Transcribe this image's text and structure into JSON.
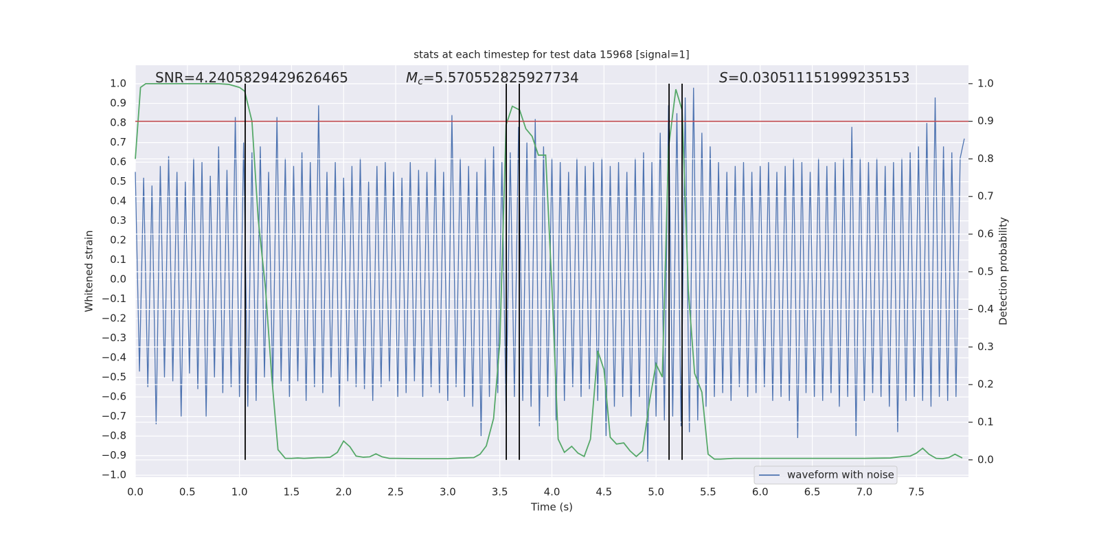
{
  "chart_data": {
    "type": "line",
    "title": "stats at each timestep for test data 15968 [signal=1]",
    "xlabel": "Time (s)",
    "ylabel": "Whitened strain",
    "y2label": "Detection probability",
    "annotations": [
      {
        "text": "SNR=4.2405829429626465"
      },
      {
        "symbol": "M",
        "subscript": "c",
        "text": "=5.570552825927734"
      },
      {
        "symbol": "S",
        "text": "=0.030511151999235153"
      }
    ],
    "xlim": [
      0,
      8.0
    ],
    "ylim": [
      -1.01,
      1.095
    ],
    "y2lim": [
      -0.046,
      1.049
    ],
    "grid": true,
    "legend": "lower right",
    "background": "#eaeaf2",
    "xticks": [
      {
        "value": 0,
        "label": "0.0"
      },
      {
        "value": 0.5,
        "label": "0.5"
      },
      {
        "value": 1,
        "label": "1.0"
      },
      {
        "value": 1.5,
        "label": "1.5"
      },
      {
        "value": 2,
        "label": "2.0"
      },
      {
        "value": 2.5,
        "label": "2.5"
      },
      {
        "value": 3,
        "label": "3.0"
      },
      {
        "value": 3.5,
        "label": "3.5"
      },
      {
        "value": 4,
        "label": "4.0"
      },
      {
        "value": 4.5,
        "label": "4.5"
      },
      {
        "value": 5,
        "label": "5.0"
      },
      {
        "value": 5.5,
        "label": "5.5"
      },
      {
        "value": 6,
        "label": "6.0"
      },
      {
        "value": 6.5,
        "label": "6.5"
      },
      {
        "value": 7,
        "label": "7.0"
      },
      {
        "value": 7.5,
        "label": "7.5"
      }
    ],
    "yticks": [
      {
        "value": -1,
        "label": "−1.0"
      },
      {
        "value": -0.9,
        "label": "−0.9"
      },
      {
        "value": -0.8,
        "label": "−0.8"
      },
      {
        "value": -0.7,
        "label": "−0.7"
      },
      {
        "value": -0.6,
        "label": "−0.6"
      },
      {
        "value": -0.5,
        "label": "−0.5"
      },
      {
        "value": -0.4,
        "label": "−0.4"
      },
      {
        "value": -0.3,
        "label": "−0.3"
      },
      {
        "value": -0.2,
        "label": "−0.2"
      },
      {
        "value": -0.1,
        "label": "−0.1"
      },
      {
        "value": 0,
        "label": "0.0"
      },
      {
        "value": 0.1,
        "label": "0.1"
      },
      {
        "value": 0.2,
        "label": "0.2"
      },
      {
        "value": 0.3,
        "label": "0.3"
      },
      {
        "value": 0.4,
        "label": "0.4"
      },
      {
        "value": 0.5,
        "label": "0.5"
      },
      {
        "value": 0.6,
        "label": "0.6"
      },
      {
        "value": 0.7,
        "label": "0.7"
      },
      {
        "value": 0.8,
        "label": "0.8"
      },
      {
        "value": 0.9,
        "label": "0.9"
      },
      {
        "value": 1,
        "label": "1.0"
      }
    ],
    "y2ticks": [
      {
        "value": 0,
        "label": "0.0"
      },
      {
        "value": 0.1,
        "label": "0.1"
      },
      {
        "value": 0.2,
        "label": "0.2"
      },
      {
        "value": 0.3,
        "label": "0.3"
      },
      {
        "value": 0.4,
        "label": "0.4"
      },
      {
        "value": 0.5,
        "label": "0.5"
      },
      {
        "value": 0.6,
        "label": "0.6"
      },
      {
        "value": 0.7,
        "label": "0.7"
      },
      {
        "value": 0.8,
        "label": "0.8"
      },
      {
        "value": 0.9,
        "label": "0.9"
      },
      {
        "value": 1,
        "label": "1.0"
      }
    ],
    "series": [
      {
        "name": "waveform with noise",
        "color": "#4c72b0",
        "x": [
          0,
          0.04,
          0.08,
          0.12,
          0.16,
          0.2,
          0.24,
          0.28,
          0.32,
          0.36,
          0.4,
          0.44,
          0.48,
          0.52,
          0.56,
          0.6,
          0.64,
          0.68,
          0.72,
          0.76,
          0.8,
          0.84,
          0.88,
          0.92,
          0.96,
          1,
          1.04,
          1.08,
          1.12,
          1.16,
          1.2,
          1.24,
          1.28,
          1.32,
          1.36,
          1.4,
          1.44,
          1.48,
          1.52,
          1.56,
          1.6,
          1.64,
          1.68,
          1.72,
          1.76,
          1.8,
          1.84,
          1.88,
          1.92,
          1.96,
          2,
          2.04,
          2.08,
          2.12,
          2.16,
          2.2,
          2.24,
          2.28,
          2.32,
          2.36,
          2.4,
          2.44,
          2.48,
          2.52,
          2.56,
          2.6,
          2.64,
          2.68,
          2.72,
          2.76,
          2.8,
          2.84,
          2.88,
          2.92,
          2.96,
          3,
          3.04,
          3.08,
          3.12,
          3.16,
          3.2,
          3.24,
          3.28,
          3.32,
          3.36,
          3.4,
          3.44,
          3.48,
          3.52,
          3.56,
          3.6,
          3.64,
          3.68,
          3.72,
          3.76,
          3.8,
          3.84,
          3.88,
          3.92,
          3.96,
          4,
          4.04,
          4.08,
          4.12,
          4.16,
          4.2,
          4.24,
          4.28,
          4.32,
          4.36,
          4.4,
          4.44,
          4.48,
          4.52,
          4.56,
          4.6,
          4.64,
          4.68,
          4.72,
          4.76,
          4.8,
          4.84,
          4.88,
          4.92,
          4.96,
          5,
          5.04,
          5.08,
          5.12,
          5.16,
          5.2,
          5.24,
          5.28,
          5.32,
          5.36,
          5.4,
          5.44,
          5.48,
          5.52,
          5.56,
          5.6,
          5.64,
          5.68,
          5.72,
          5.76,
          5.8,
          5.84,
          5.88,
          5.92,
          5.96,
          6,
          6.04,
          6.08,
          6.12,
          6.16,
          6.2,
          6.24,
          6.28,
          6.32,
          6.36,
          6.4,
          6.44,
          6.48,
          6.52,
          6.56,
          6.6,
          6.64,
          6.68,
          6.72,
          6.76,
          6.8,
          6.84,
          6.88,
          6.92,
          6.96,
          7,
          7.04,
          7.08,
          7.12,
          7.16,
          7.2,
          7.24,
          7.28,
          7.32,
          7.36,
          7.4,
          7.44,
          7.48,
          7.52,
          7.56,
          7.6,
          7.64,
          7.68,
          7.72,
          7.76,
          7.8,
          7.84,
          7.88,
          7.92,
          7.96
        ],
        "values": [
          0.55,
          -0.47,
          0.52,
          -0.55,
          0.48,
          -0.74,
          0.58,
          -0.5,
          0.63,
          -0.52,
          0.55,
          -0.7,
          0.5,
          -0.48,
          0.62,
          -0.56,
          0.6,
          -0.7,
          0.53,
          -0.5,
          0.68,
          -0.58,
          0.56,
          -0.55,
          0.83,
          -0.6,
          0.7,
          -0.65,
          0.65,
          -0.62,
          0.68,
          -0.5,
          0.55,
          -0.55,
          0.83,
          -0.52,
          0.62,
          -0.6,
          0.58,
          -0.52,
          0.65,
          -0.62,
          0.6,
          -0.55,
          0.89,
          -0.58,
          0.55,
          -0.5,
          0.6,
          -0.65,
          0.52,
          -0.52,
          0.58,
          -0.55,
          0.62,
          -0.56,
          0.5,
          -0.62,
          0.58,
          -0.55,
          0.6,
          -0.52,
          0.55,
          -0.6,
          0.52,
          -0.58,
          0.6,
          -0.52,
          0.56,
          -0.6,
          0.55,
          -0.55,
          0.62,
          -0.58,
          0.55,
          -0.62,
          0.84,
          -0.55,
          0.62,
          -0.6,
          0.58,
          -0.65,
          0.55,
          -0.8,
          0.62,
          -0.6,
          0.68,
          -0.58,
          0.6,
          -0.68,
          0.65,
          -0.6,
          0.78,
          -0.62,
          0.7,
          -0.65,
          0.82,
          -0.75,
          0.68,
          -0.6,
          0.62,
          -0.72,
          0.6,
          -0.62,
          0.55,
          -0.55,
          0.62,
          -0.6,
          0.58,
          -0.56,
          0.6,
          -0.62,
          0.62,
          -0.8,
          0.58,
          -0.65,
          0.6,
          -0.6,
          0.55,
          -0.7,
          0.62,
          -0.6,
          0.65,
          -0.93,
          0.6,
          -0.7,
          0.75,
          -0.72,
          0.89,
          -0.7,
          0.85,
          -0.75,
          0.93,
          -0.78,
          0.98,
          -0.72,
          0.75,
          -0.65,
          0.68,
          -0.6,
          0.6,
          -0.58,
          0.55,
          -0.62,
          0.58,
          -0.55,
          0.6,
          -0.6,
          0.55,
          -0.58,
          0.58,
          -0.55,
          0.6,
          -0.62,
          0.55,
          -0.6,
          0.58,
          -0.62,
          0.62,
          -0.81,
          0.6,
          -0.58,
          0.55,
          -0.6,
          0.62,
          -0.62,
          0.58,
          -0.58,
          0.6,
          -0.65,
          0.62,
          -0.6,
          0.78,
          -0.8,
          0.62,
          -0.62,
          0.6,
          -0.58,
          0.62,
          -0.6,
          0.58,
          -0.65,
          0.6,
          -0.78,
          0.62,
          -0.62,
          0.65,
          -0.6,
          0.68,
          -0.62,
          0.8,
          -0.65,
          0.93,
          -0.6,
          0.68,
          -0.62,
          0.65,
          -0.6,
          0.62,
          0.72
        ]
      },
      {
        "color": "#55a868",
        "axis": "y2",
        "x": [
          0,
          0.05,
          0.1,
          0.2,
          0.4,
          0.6,
          0.8,
          0.9,
          1,
          1.05,
          1.12,
          1.18,
          1.25,
          1.31,
          1.37,
          1.44,
          1.5,
          1.56,
          1.62,
          1.69,
          1.75,
          1.81,
          1.87,
          1.94,
          2,
          2.06,
          2.12,
          2.19,
          2.25,
          2.31,
          2.37,
          2.44,
          2.5,
          2.75,
          3,
          3.12,
          3.25,
          3.31,
          3.37,
          3.44,
          3.5,
          3.56,
          3.62,
          3.69,
          3.75,
          3.81,
          3.87,
          3.94,
          4,
          4.06,
          4.12,
          4.19,
          4.25,
          4.31,
          4.37,
          4.44,
          4.5,
          4.56,
          4.62,
          4.69,
          4.75,
          4.81,
          4.87,
          4.94,
          5,
          5.06,
          5.12,
          5.19,
          5.25,
          5.31,
          5.37,
          5.44,
          5.5,
          5.56,
          5.62,
          5.75,
          6,
          6.5,
          7,
          7.25,
          7.37,
          7.44,
          7.5,
          7.56,
          7.62,
          7.69,
          7.75,
          7.81,
          7.87,
          7.94
        ],
        "values": [
          0.8,
          0.99,
          1,
          1,
          1,
          1,
          1,
          0.998,
          0.99,
          0.98,
          0.9,
          0.64,
          0.456,
          0.22,
          0.027,
          0.004,
          0.004,
          0.005,
          0.004,
          0.005,
          0.006,
          0.006,
          0.007,
          0.02,
          0.05,
          0.035,
          0.01,
          0.007,
          0.008,
          0.016,
          0.008,
          0.004,
          0.004,
          0.003,
          0.003,
          0.005,
          0.006,
          0.015,
          0.037,
          0.11,
          0.31,
          0.89,
          0.94,
          0.93,
          0.88,
          0.86,
          0.81,
          0.81,
          0.46,
          0.055,
          0.02,
          0.036,
          0.018,
          0.009,
          0.055,
          0.29,
          0.24,
          0.06,
          0.042,
          0.045,
          0.024,
          0.009,
          0.024,
          0.16,
          0.255,
          0.22,
          0.83,
          0.985,
          0.93,
          0.45,
          0.23,
          0.18,
          0.015,
          0.002,
          0.002,
          0.004,
          0.004,
          0.004,
          0.004,
          0.005,
          0.009,
          0.01,
          0.018,
          0.031,
          0.015,
          0.004,
          0.003,
          0.006,
          0.015,
          0.005
        ]
      }
    ],
    "threshold": {
      "value": 0.9,
      "axis": "y2",
      "color": "#c44e52"
    },
    "vlines": {
      "x": [
        1.055,
        3.562,
        3.687,
        5.125,
        5.25
      ],
      "ymin": 0,
      "ymax": 1,
      "axis": "y2",
      "color": "#000000"
    }
  }
}
